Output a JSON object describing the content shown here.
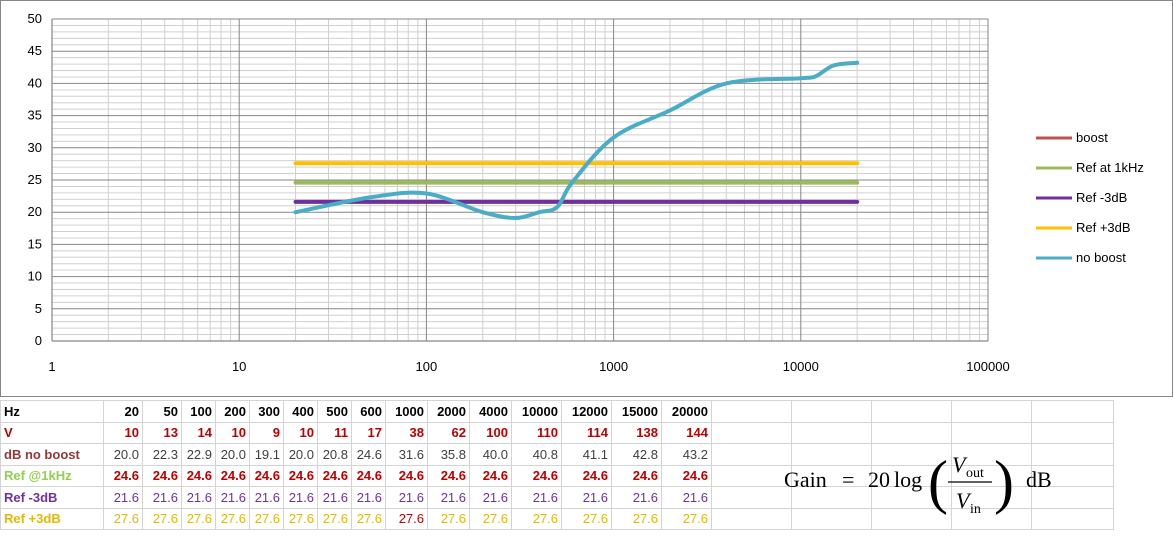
{
  "chart_data": {
    "type": "line",
    "xscale": "log",
    "xlim": [
      1,
      100000
    ],
    "ylim": [
      0,
      50
    ],
    "grid": true,
    "legend_position": "right",
    "x_ticks": [
      "1",
      "10",
      "100",
      "1000",
      "10000",
      "100000"
    ],
    "y_ticks": [
      "0",
      "5",
      "10",
      "15",
      "20",
      "25",
      "30",
      "35",
      "40",
      "45",
      "50"
    ],
    "series": [
      {
        "name": "boost",
        "color": "#c0504d",
        "x": [],
        "y": []
      },
      {
        "name": "Ref at 1kHz",
        "color": "#9bbb59",
        "x": [
          20,
          20000
        ],
        "y": [
          24.6,
          24.6
        ]
      },
      {
        "name": "Ref -3dB",
        "color": "#7030a0",
        "x": [
          20,
          20000
        ],
        "y": [
          21.6,
          21.6
        ]
      },
      {
        "name": "Ref +3dB",
        "color": "#ffc000",
        "x": [
          20,
          20000
        ],
        "y": [
          27.6,
          27.6
        ]
      },
      {
        "name": "no boost",
        "color": "#4bacc6",
        "x": [
          20,
          50,
          100,
          200,
          300,
          400,
          500,
          600,
          1000,
          2000,
          4000,
          10000,
          12000,
          15000,
          20000
        ],
        "y": [
          20.0,
          22.3,
          22.9,
          20.0,
          19.1,
          20.0,
          20.8,
          24.6,
          31.6,
          35.8,
          40.0,
          40.8,
          41.1,
          42.8,
          43.2
        ]
      }
    ]
  },
  "table": {
    "rows": [
      {
        "label": "Hz",
        "cells": [
          "20",
          "50",
          "100",
          "200",
          "300",
          "400",
          "500",
          "600",
          "1000",
          "2000",
          "4000",
          "10000",
          "12000",
          "15000",
          "20000"
        ]
      },
      {
        "label": "V",
        "cells": [
          "10",
          "13",
          "14",
          "10",
          "9",
          "10",
          "11",
          "17",
          "38",
          "62",
          "100",
          "110",
          "114",
          "138",
          "144"
        ]
      },
      {
        "label": "dB no boost",
        "cells": [
          "20.0",
          "22.3",
          "22.9",
          "20.0",
          "19.1",
          "20.0",
          "20.8",
          "24.6",
          "31.6",
          "35.8",
          "40.0",
          "40.8",
          "41.1",
          "42.8",
          "43.2"
        ]
      },
      {
        "label": "Ref @1kHz",
        "cells": [
          "24.6",
          "24.6",
          "24.6",
          "24.6",
          "24.6",
          "24.6",
          "24.6",
          "24.6",
          "24.6",
          "24.6",
          "24.6",
          "24.6",
          "24.6",
          "24.6",
          "24.6"
        ]
      },
      {
        "label": "Ref -3dB",
        "cells": [
          "21.6",
          "21.6",
          "21.6",
          "21.6",
          "21.6",
          "21.6",
          "21.6",
          "21.6",
          "21.6",
          "21.6",
          "21.6",
          "21.6",
          "21.6",
          "21.6",
          "21.6"
        ]
      },
      {
        "label": "Ref +3dB",
        "cells": [
          "27.6",
          "27.6",
          "27.6",
          "27.6",
          "27.6",
          "27.6",
          "27.6",
          "27.6",
          "27.6",
          "27.6",
          "27.6",
          "27.6",
          "27.6",
          "27.6",
          "27.6"
        ]
      }
    ]
  },
  "formula": {
    "lhs": "Gain",
    "equals": "=",
    "coef": "20",
    "fn": "log",
    "num": "V",
    "num_sub": "out",
    "den": "V",
    "den_sub": "in",
    "unit": "dB"
  }
}
